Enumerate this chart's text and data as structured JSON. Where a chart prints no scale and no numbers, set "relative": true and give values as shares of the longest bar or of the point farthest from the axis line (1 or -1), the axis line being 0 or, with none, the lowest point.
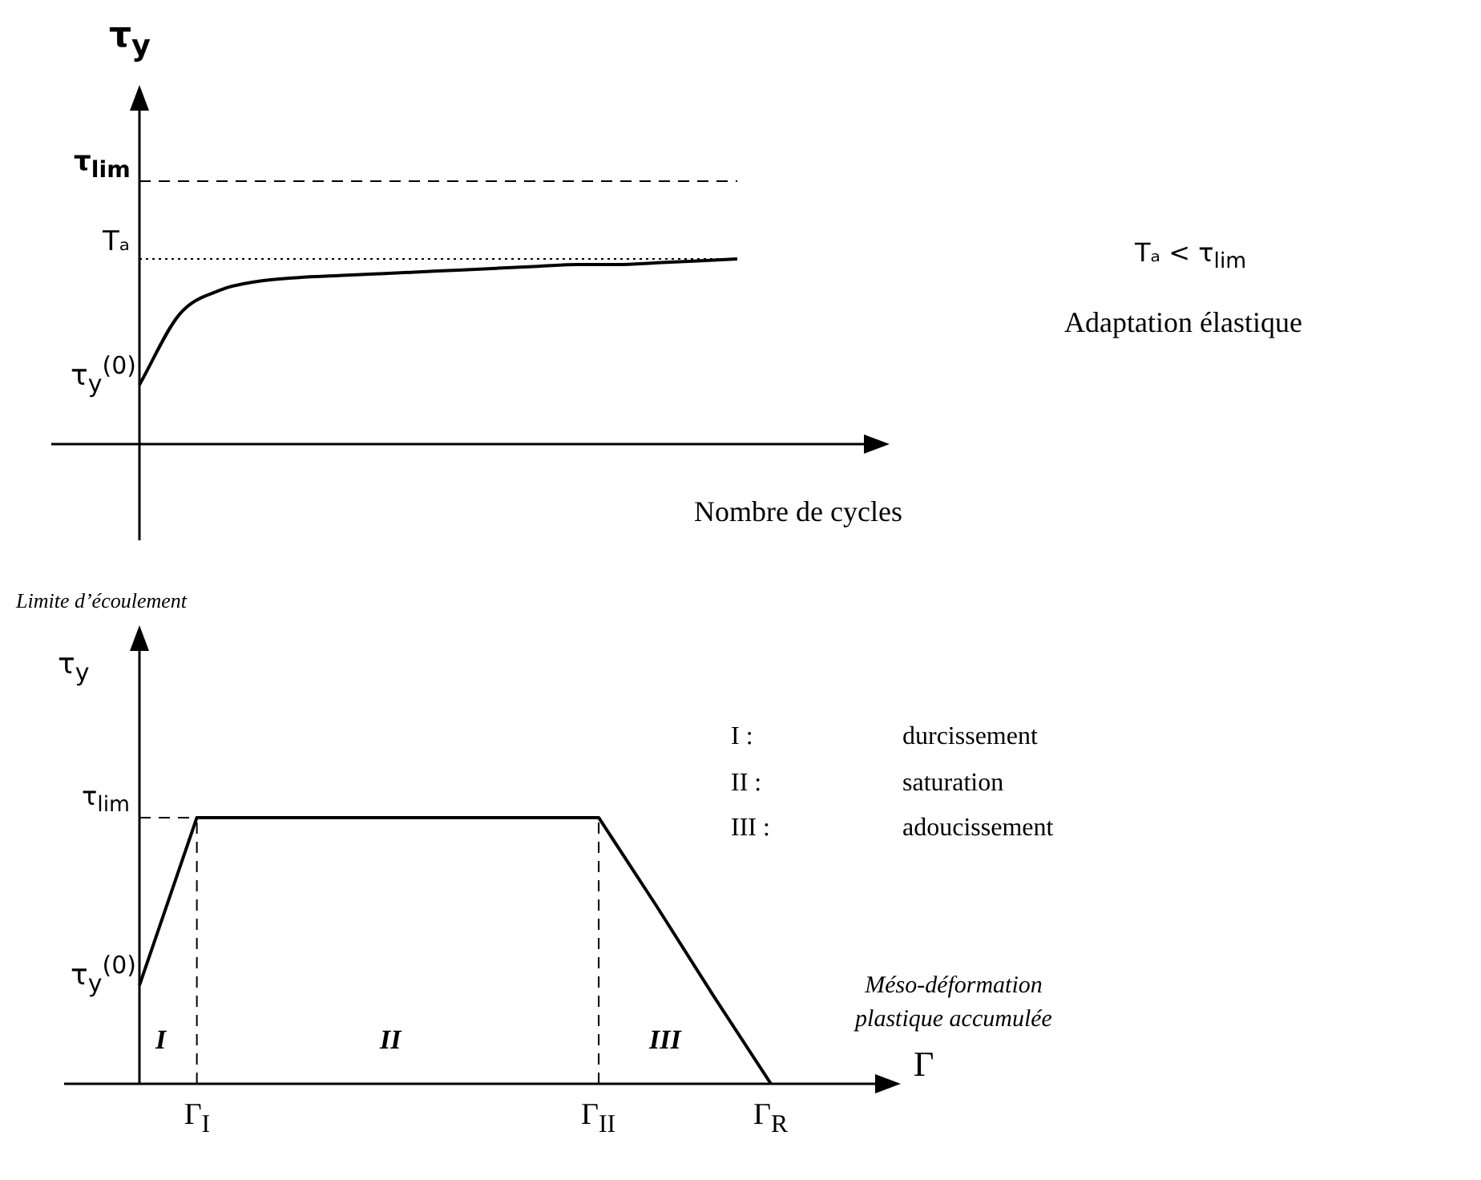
{
  "chart_data": [
    {
      "type": "line",
      "relative": true,
      "ylabel": "τ$_{y}$",
      "xlabel": "Nombre de cycles",
      "color": "#000000",
      "marker": "none",
      "line_style": "solid",
      "categories": [
        null,
        null,
        null,
        null,
        null,
        null,
        null,
        null,
        null,
        null,
        null,
        null,
        null,
        null,
        null,
        null
      ],
      "values": [
        0.32,
        0.7,
        0.83,
        0.88,
        0.9,
        0.91,
        0.92,
        0.93,
        0.94,
        0.95,
        0.96,
        0.97,
        0.97,
        0.98,
        0.99,
        1
      ],
      "ref_lines": [
        {
          "axis": "y",
          "value": 1.42,
          "label": "τ$_{lim}$",
          "line_style": "dashed",
          "color": "#000000"
        },
        {
          "axis": "y",
          "value": 1,
          "label": "Tₐ",
          "line_style": "dotted",
          "color": "#000000"
        }
      ],
      "annotations": [
        "τ$_{y}$$^{(0)}$",
        "Tₐ < τ$_{lim}$",
        "Adaptation élastique"
      ]
    },
    {
      "type": "line",
      "relative": true,
      "ylabel": "τ$_{y}$",
      "xlabel": "Γ",
      "color": "#000000",
      "marker": "none",
      "line_style": "solid",
      "categories": [
        null,
        "Γ$_{I}$",
        null,
        null,
        null,
        null,
        null,
        null,
        "Γ$_{II}$",
        null,
        null,
        "Γ$_{R}$"
      ],
      "values": [
        0.37,
        1,
        1,
        1,
        1,
        1,
        1,
        1,
        1,
        0.67,
        0.33,
        0
      ],
      "ref_lines": [
        {
          "axis": "y",
          "value": 1,
          "label": "τ$_{lim}$",
          "line_style": "dashed",
          "color": "#000000"
        },
        {
          "axis": "x",
          "value": "Γ$_{I}$",
          "line_style": "dashed",
          "color": "#000000"
        },
        {
          "axis": "x",
          "value": "Γ$_{II}$",
          "line_style": "dashed",
          "color": "#000000"
        }
      ],
      "annotations": [
        "Limite d’écoulement",
        "τ$_{y}$$^{(0)}$",
        "I",
        "II",
        "III",
        "I :",
        "durcissement",
        "II :",
        "saturation",
        "III :",
        "adoucissement",
        "Méso-déformation plastique accumulée"
      ]
    }
  ]
}
